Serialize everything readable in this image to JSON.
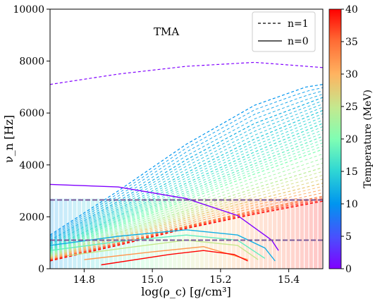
{
  "chart_data": {
    "type": "line",
    "annotation": "TMA",
    "xlabel": "log(ρ_c) [g/cm³]",
    "ylabel": "ν_n [Hz]",
    "xlim": [
      14.7,
      15.5
    ],
    "ylim": [
      0,
      10000
    ],
    "xticks": [
      14.8,
      15.0,
      15.2,
      15.4
    ],
    "xtick_labels": [
      "14.8",
      "15.0",
      "15.2",
      "15.4"
    ],
    "yticks": [
      0,
      2000,
      4000,
      6000,
      8000,
      10000
    ],
    "ytick_labels": [
      "0",
      "2000",
      "4000",
      "6000",
      "8000",
      "10000"
    ],
    "legend": {
      "placement": "top-right",
      "entries": [
        {
          "label": "n=1",
          "style": "dashed"
        },
        {
          "label": "n=0",
          "style": "solid"
        }
      ]
    },
    "colorbar": {
      "label": "Temperature (MeV)",
      "min": 0,
      "max": 40,
      "ticks": [
        0,
        5,
        10,
        15,
        20,
        25,
        30,
        35,
        40
      ],
      "tick_labels": [
        "0",
        "5",
        "10",
        "15",
        "20",
        "25",
        "30",
        "35",
        "40"
      ],
      "colormap": "rainbow"
    },
    "horizontal_lines": [
      2650,
      1100
    ],
    "horizontal_line_color": "#7a5a9a",
    "series_n1": [
      {
        "temperature": 0,
        "x": [
          14.7,
          14.9,
          15.1,
          15.3,
          15.5
        ],
        "y": [
          7100,
          7500,
          7800,
          7950,
          7750
        ]
      },
      {
        "temperature": 10,
        "x": [
          14.7,
          14.9,
          15.1,
          15.3,
          15.45,
          15.5
        ],
        "y": [
          1300,
          3000,
          4800,
          6300,
          7000,
          7100
        ]
      },
      {
        "temperature": 12,
        "x": [
          14.7,
          14.9,
          15.1,
          15.3,
          15.5
        ],
        "y": [
          1100,
          2600,
          4200,
          5600,
          6600
        ]
      },
      {
        "temperature": 14,
        "x": [
          14.7,
          14.9,
          15.1,
          15.3,
          15.5
        ],
        "y": [
          950,
          2300,
          3700,
          5000,
          6100
        ]
      },
      {
        "temperature": 16,
        "x": [
          14.7,
          14.9,
          15.1,
          15.3,
          15.5
        ],
        "y": [
          800,
          2050,
          3300,
          4500,
          5600
        ]
      },
      {
        "temperature": 18,
        "x": [
          14.7,
          14.9,
          15.1,
          15.3,
          15.5
        ],
        "y": [
          700,
          1850,
          2950,
          4050,
          5100
        ]
      },
      {
        "temperature": 20,
        "x": [
          14.7,
          14.9,
          15.1,
          15.3,
          15.5
        ],
        "y": [
          600,
          1650,
          2650,
          3650,
          4600
        ]
      },
      {
        "temperature": 24,
        "x": [
          14.7,
          14.9,
          15.1,
          15.3,
          15.5
        ],
        "y": [
          500,
          1400,
          2250,
          3100,
          3900
        ]
      },
      {
        "temperature": 28,
        "x": [
          14.7,
          14.9,
          15.1,
          15.3,
          15.5
        ],
        "y": [
          420,
          1200,
          1950,
          2650,
          3300
        ]
      },
      {
        "temperature": 34,
        "x": [
          14.7,
          14.9,
          15.1,
          15.3,
          15.5
        ],
        "y": [
          350,
          1000,
          1650,
          2250,
          2800
        ]
      },
      {
        "temperature": 40,
        "x": [
          14.7,
          14.9,
          15.1,
          15.3,
          15.5
        ],
        "y": [
          300,
          900,
          1550,
          2100,
          2600
        ]
      }
    ],
    "series_n0": [
      {
        "temperature": 0,
        "x": [
          14.7,
          14.9,
          15.1,
          15.25,
          15.35,
          15.37
        ],
        "y": [
          3250,
          3150,
          2700,
          2050,
          1100,
          700
        ]
      },
      {
        "temperature": 12,
        "x": [
          14.7,
          14.9,
          15.1,
          15.25,
          15.33,
          15.36
        ],
        "y": [
          900,
          1250,
          1500,
          1300,
          800,
          300
        ]
      },
      {
        "temperature": 18,
        "x": [
          14.7,
          14.9,
          15.1,
          15.25,
          15.33
        ],
        "y": [
          700,
          1050,
          1300,
          1100,
          400
        ]
      },
      {
        "temperature": 25,
        "x": [
          14.75,
          14.95,
          15.1,
          15.25,
          15.31
        ],
        "y": [
          500,
          850,
          1100,
          900,
          350
        ]
      },
      {
        "temperature": 32,
        "x": [
          14.8,
          15.0,
          15.15,
          15.28
        ],
        "y": [
          350,
          650,
          850,
          350
        ]
      },
      {
        "temperature": 40,
        "x": [
          14.85,
          15.05,
          15.15,
          15.24,
          15.28
        ],
        "y": [
          150,
          550,
          700,
          550,
          300
        ]
      }
    ]
  }
}
